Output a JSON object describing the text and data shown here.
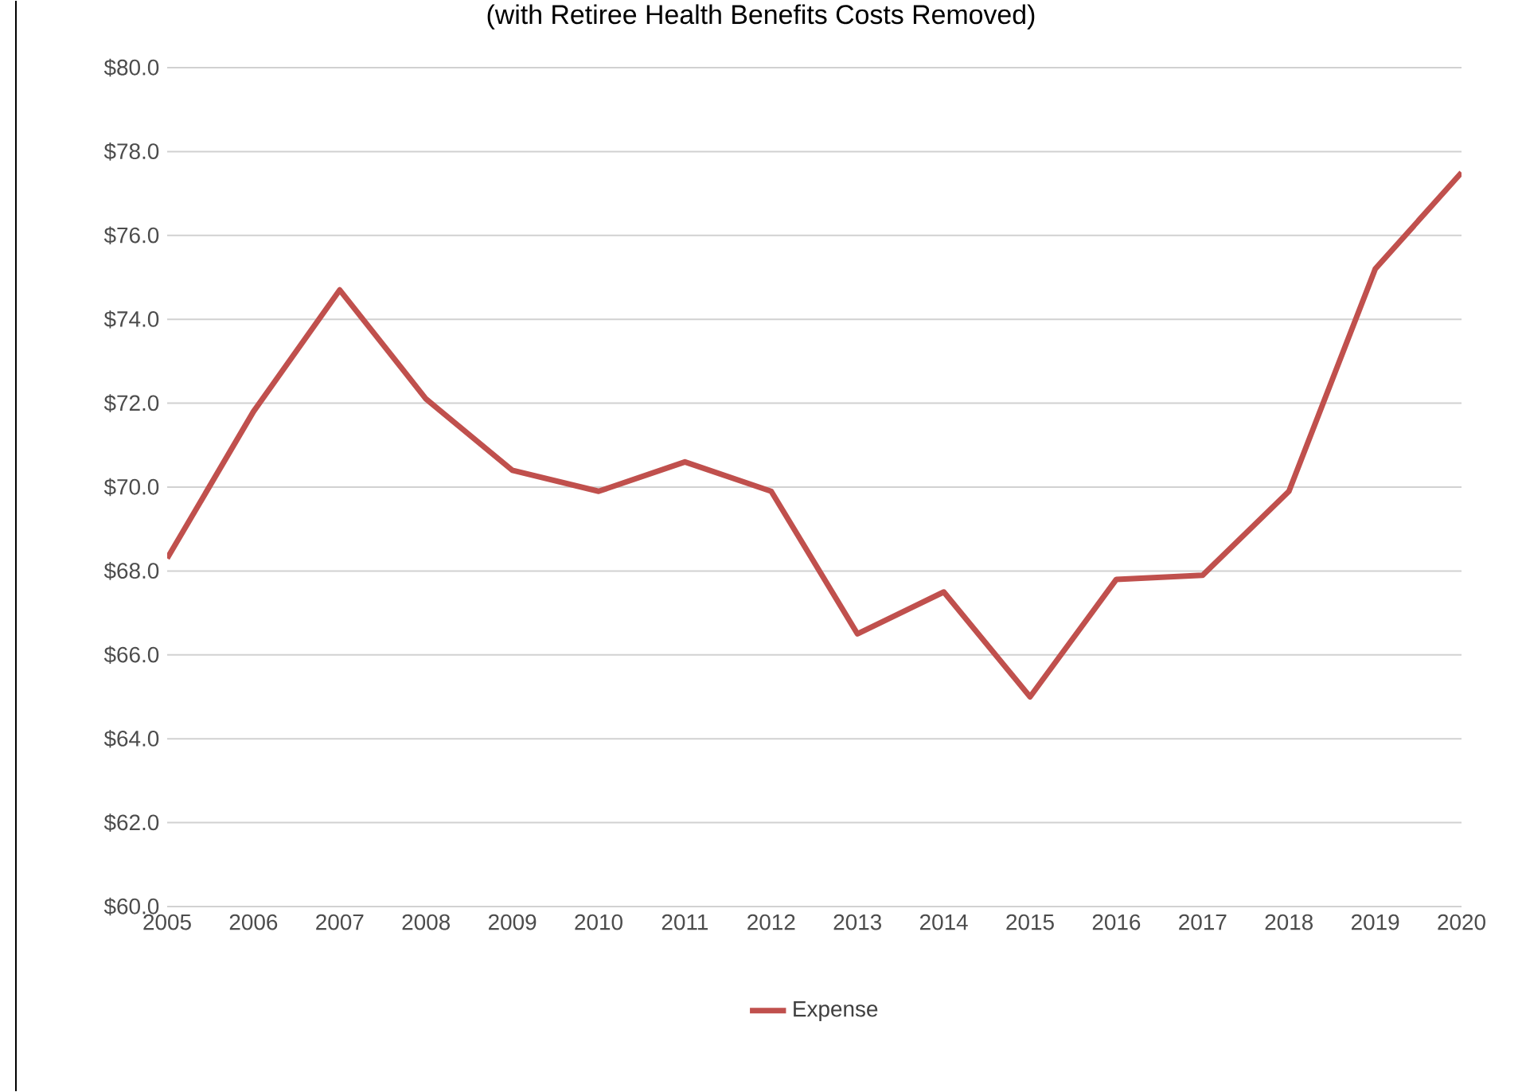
{
  "chart_data": {
    "type": "line",
    "subtitle": "(with Retiree Health Benefits Costs Removed)",
    "categories": [
      "2005",
      "2006",
      "2007",
      "2008",
      "2009",
      "2010",
      "2011",
      "2012",
      "2013",
      "2014",
      "2015",
      "2016",
      "2017",
      "2018",
      "2019",
      "2020"
    ],
    "series": [
      {
        "name": "Expense",
        "color": "#c0504d",
        "values": [
          68.3,
          71.8,
          74.7,
          72.1,
          70.4,
          69.9,
          70.6,
          69.9,
          66.5,
          67.5,
          65.0,
          67.8,
          67.9,
          69.9,
          75.2,
          77.5
        ]
      }
    ],
    "ylim": [
      60,
      80
    ],
    "yticks": [
      {
        "value": 60,
        "label": "$60.0"
      },
      {
        "value": 62,
        "label": "$62.0"
      },
      {
        "value": 64,
        "label": "$64.0"
      },
      {
        "value": 66,
        "label": "$66.0"
      },
      {
        "value": 68,
        "label": "$68.0"
      },
      {
        "value": 70,
        "label": "$70.0"
      },
      {
        "value": 72,
        "label": "$72.0"
      },
      {
        "value": 74,
        "label": "$74.0"
      },
      {
        "value": 76,
        "label": "$76.0"
      },
      {
        "value": 78,
        "label": "$78.0"
      },
      {
        "value": 80,
        "label": "$80.0"
      }
    ],
    "grid": "y",
    "legend": "bottom",
    "marker": "none",
    "line_style": "solid"
  }
}
